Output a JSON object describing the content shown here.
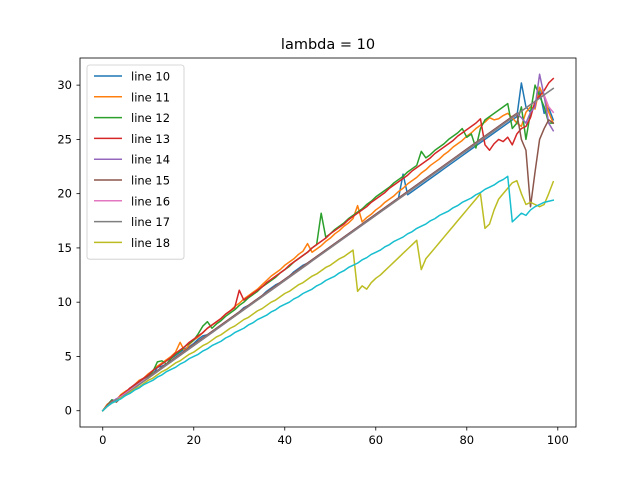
{
  "chart_data": {
    "type": "line",
    "title": "lambda = 10",
    "xlabel": "",
    "ylabel": "",
    "xlim": [
      -5,
      104
    ],
    "ylim": [
      -1.5,
      32.5
    ],
    "x_ticks": [
      0,
      20,
      40,
      60,
      80,
      100
    ],
    "y_ticks": [
      0,
      5,
      10,
      15,
      20,
      25,
      30
    ],
    "grid": false,
    "legend_position": "top-left",
    "x_start": 0,
    "x_end": 99,
    "series": [
      {
        "name": "line 10",
        "color": "#1f77b4",
        "values": [
          0.0,
          0.5,
          1.0,
          0.9,
          1.4,
          1.6,
          2.1,
          2.2,
          2.6,
          2.9,
          3.2,
          3.3,
          4.0,
          4.1,
          4.3,
          4.8,
          5.1,
          5.4,
          5.7,
          5.9,
          6.2,
          6.6,
          6.9,
          7.0,
          7.2,
          7.5,
          7.8,
          8.1,
          8.5,
          8.8,
          9.1,
          9.5,
          9.7,
          10.0,
          10.3,
          10.6,
          11.0,
          11.3,
          11.6,
          11.8,
          12.1,
          12.4,
          12.8,
          13.1,
          13.4,
          13.6,
          13.9,
          14.2,
          14.5,
          14.8,
          15.1,
          15.4,
          15.7,
          16.0,
          16.3,
          16.6,
          16.9,
          17.2,
          17.5,
          17.8,
          18.1,
          18.4,
          18.7,
          19.0,
          19.3,
          19.6,
          21.8,
          19.9,
          20.2,
          20.5,
          20.8,
          21.1,
          21.4,
          21.7,
          22.0,
          22.3,
          22.6,
          22.9,
          23.2,
          23.5,
          23.8,
          24.1,
          24.4,
          24.7,
          25.0,
          25.3,
          25.6,
          25.9,
          26.2,
          26.5,
          26.8,
          27.1,
          30.2,
          28.0,
          27.5,
          28.2,
          29.5,
          27.4,
          27.9,
          26.8
        ]
      },
      {
        "name": "line 11",
        "color": "#ff7f0e",
        "values": [
          0.0,
          0.6,
          0.9,
          1.0,
          1.5,
          1.8,
          2.0,
          2.4,
          2.8,
          3.0,
          3.4,
          3.7,
          4.1,
          4.4,
          4.7,
          5.0,
          5.4,
          6.3,
          5.5,
          6.1,
          6.5,
          6.8,
          7.2,
          7.6,
          7.9,
          8.2,
          8.5,
          8.9,
          9.2,
          9.6,
          9.9,
          10.3,
          10.6,
          10.9,
          11.2,
          11.6,
          12.0,
          12.4,
          12.7,
          13.0,
          13.4,
          13.7,
          14.0,
          14.4,
          14.7,
          15.4,
          14.6,
          14.9,
          15.2,
          15.6,
          15.9,
          16.3,
          16.6,
          17.0,
          17.3,
          17.7,
          18.9,
          17.4,
          17.8,
          18.1,
          18.5,
          18.8,
          19.2,
          19.5,
          19.8,
          20.2,
          20.5,
          20.9,
          21.2,
          21.5,
          21.9,
          22.2,
          22.6,
          22.9,
          23.2,
          23.6,
          23.9,
          24.3,
          24.6,
          24.9,
          25.3,
          25.6,
          26.0,
          26.3,
          26.6,
          27.0,
          26.8,
          26.9,
          27.2,
          27.4,
          27.0,
          26.5,
          26.2,
          27.5,
          28.0,
          27.8,
          29.8,
          28.9,
          27.5,
          26.5
        ]
      },
      {
        "name": "line 12",
        "color": "#2ca02c",
        "values": [
          0.0,
          0.5,
          1.0,
          0.8,
          1.3,
          1.7,
          2.0,
          2.3,
          2.6,
          3.0,
          3.2,
          3.6,
          4.5,
          4.6,
          4.3,
          4.8,
          5.2,
          5.5,
          5.9,
          6.2,
          6.5,
          7.1,
          7.8,
          8.2,
          7.6,
          8.0,
          8.3,
          8.7,
          9.0,
          9.3,
          9.7,
          10.0,
          10.4,
          10.7,
          11.0,
          11.4,
          11.7,
          12.0,
          12.3,
          12.7,
          13.0,
          13.3,
          13.7,
          14.0,
          14.3,
          14.6,
          15.0,
          15.3,
          18.2,
          16.0,
          16.3,
          16.7,
          17.0,
          17.3,
          17.7,
          18.0,
          18.3,
          18.6,
          19.0,
          19.3,
          19.7,
          20.0,
          20.3,
          20.6,
          21.0,
          21.3,
          21.6,
          22.0,
          22.3,
          22.6,
          23.9,
          23.3,
          23.6,
          24.0,
          24.3,
          24.6,
          25.0,
          25.3,
          25.6,
          26.0,
          25.2,
          25.5,
          24.2,
          26.0,
          26.8,
          27.1,
          27.4,
          27.7,
          28.0,
          28.3,
          26.0,
          26.5,
          28.0,
          25.0,
          27.5,
          30.0,
          29.0,
          28.0,
          26.5,
          26.5
        ]
      },
      {
        "name": "line 13",
        "color": "#d62728",
        "values": [
          0.0,
          0.5,
          0.9,
          1.0,
          1.4,
          1.7,
          2.1,
          2.4,
          2.7,
          3.0,
          3.3,
          3.7,
          4.0,
          4.3,
          4.6,
          4.9,
          5.3,
          5.6,
          5.9,
          6.3,
          6.6,
          6.9,
          7.2,
          7.6,
          7.9,
          8.2,
          8.5,
          8.9,
          9.2,
          9.5,
          11.1,
          10.2,
          10.5,
          10.8,
          11.1,
          11.4,
          11.8,
          12.1,
          12.4,
          12.7,
          13.0,
          13.4,
          13.7,
          14.0,
          14.3,
          14.6,
          15.0,
          15.3,
          15.6,
          15.9,
          16.3,
          16.6,
          16.9,
          17.2,
          17.6,
          17.9,
          18.2,
          18.5,
          18.8,
          19.2,
          19.5,
          19.8,
          20.1,
          20.5,
          20.8,
          21.1,
          21.4,
          21.7,
          22.1,
          22.4,
          22.7,
          23.0,
          23.3,
          23.7,
          24.0,
          24.3,
          24.6,
          24.9,
          25.3,
          25.6,
          25.9,
          26.2,
          26.5,
          26.9,
          24.5,
          24.0,
          24.6,
          25.0,
          24.8,
          25.2,
          24.5,
          25.5,
          26.0,
          26.2,
          27.0,
          28.5,
          29.0,
          29.5,
          30.2,
          30.6
        ]
      },
      {
        "name": "line 14",
        "color": "#9467bd",
        "values": [
          0.0,
          0.4,
          0.8,
          1.1,
          1.3,
          1.6,
          1.9,
          2.2,
          2.5,
          2.8,
          3.1,
          3.4,
          3.7,
          4.0,
          4.3,
          4.6,
          4.9,
          5.2,
          5.5,
          5.8,
          6.1,
          6.4,
          6.7,
          7.0,
          7.3,
          7.6,
          7.9,
          8.2,
          8.5,
          8.8,
          9.1,
          9.4,
          9.7,
          10.0,
          10.3,
          10.6,
          10.9,
          11.2,
          11.5,
          11.8,
          12.1,
          12.4,
          12.7,
          13.0,
          13.3,
          13.6,
          13.9,
          14.2,
          14.5,
          14.8,
          15.1,
          15.4,
          15.7,
          16.0,
          16.3,
          16.6,
          16.9,
          17.2,
          17.5,
          17.8,
          18.1,
          18.4,
          18.7,
          19.0,
          19.3,
          19.6,
          19.9,
          20.2,
          20.5,
          20.8,
          21.1,
          21.4,
          21.7,
          22.0,
          22.3,
          22.6,
          22.9,
          23.2,
          23.5,
          23.8,
          24.1,
          24.4,
          24.7,
          25.0,
          25.3,
          25.6,
          25.9,
          26.2,
          26.5,
          26.8,
          27.1,
          27.4,
          27.0,
          26.5,
          27.5,
          28.0,
          31.0,
          29.0,
          26.5,
          25.8
        ]
      },
      {
        "name": "line 15",
        "color": "#8c564b",
        "values": [
          0.0,
          0.5,
          0.9,
          0.8,
          1.2,
          1.6,
          1.9,
          2.2,
          2.5,
          2.8,
          3.1,
          3.4,
          3.7,
          4.0,
          4.3,
          4.6,
          4.9,
          5.2,
          5.5,
          5.8,
          6.1,
          6.4,
          6.7,
          7.0,
          7.3,
          7.6,
          7.9,
          8.2,
          8.5,
          8.8,
          9.1,
          9.4,
          9.7,
          10.0,
          10.3,
          10.6,
          10.9,
          11.2,
          11.5,
          11.8,
          12.1,
          12.4,
          12.7,
          13.0,
          13.3,
          13.6,
          13.9,
          14.2,
          14.5,
          14.8,
          15.1,
          15.4,
          15.7,
          16.0,
          16.3,
          16.6,
          16.9,
          17.2,
          17.5,
          17.8,
          18.1,
          18.4,
          18.7,
          19.0,
          19.3,
          19.6,
          19.9,
          20.2,
          20.5,
          20.8,
          21.1,
          21.4,
          21.7,
          22.0,
          22.3,
          22.6,
          22.9,
          23.2,
          23.5,
          23.8,
          24.1,
          24.4,
          24.7,
          25.0,
          25.3,
          25.6,
          25.9,
          26.2,
          26.5,
          26.8,
          27.1,
          27.4,
          25.0,
          24.0,
          18.8,
          22.0,
          25.0,
          26.0,
          26.8,
          26.5
        ]
      },
      {
        "name": "line 16",
        "color": "#e377c2",
        "values": [
          0.0,
          0.4,
          0.8,
          1.0,
          1.3,
          1.6,
          1.9,
          2.2,
          2.5,
          2.8,
          3.0,
          3.3,
          3.6,
          3.9,
          4.2,
          4.5,
          4.8,
          5.1,
          5.4,
          5.7,
          6.0,
          6.3,
          6.6,
          6.9,
          7.2,
          7.5,
          7.8,
          8.1,
          8.4,
          8.7,
          9.0,
          9.3,
          9.6,
          9.9,
          10.2,
          10.5,
          10.8,
          11.1,
          11.4,
          11.7,
          12.0,
          12.3,
          12.6,
          12.9,
          13.2,
          13.5,
          13.8,
          14.1,
          14.4,
          14.7,
          15.0,
          15.3,
          15.6,
          15.9,
          16.2,
          16.5,
          16.8,
          17.1,
          17.4,
          17.7,
          18.0,
          18.3,
          18.6,
          18.9,
          19.2,
          19.5,
          19.8,
          20.1,
          20.4,
          20.7,
          21.0,
          21.3,
          21.6,
          21.9,
          22.2,
          22.5,
          22.8,
          23.1,
          23.4,
          23.7,
          24.0,
          24.3,
          24.6,
          24.9,
          25.2,
          25.5,
          25.8,
          26.1,
          26.4,
          26.7,
          27.0,
          27.3,
          27.6,
          27.9,
          28.2,
          28.5,
          28.8,
          29.1,
          28.0,
          27.5
        ]
      },
      {
        "name": "line 17",
        "color": "#7f7f7f",
        "values": [
          0.0,
          0.4,
          0.8,
          1.0,
          1.2,
          1.5,
          1.8,
          2.1,
          2.4,
          2.7,
          3.0,
          3.3,
          3.6,
          3.9,
          4.2,
          4.5,
          4.8,
          5.1,
          5.4,
          5.7,
          6.0,
          6.3,
          6.6,
          6.9,
          7.2,
          7.5,
          7.8,
          8.1,
          8.4,
          8.7,
          9.0,
          9.3,
          9.6,
          9.9,
          10.2,
          10.5,
          10.8,
          11.1,
          11.4,
          11.7,
          12.0,
          12.3,
          12.6,
          12.9,
          13.2,
          13.5,
          13.8,
          14.1,
          14.4,
          14.7,
          15.0,
          15.3,
          15.6,
          15.9,
          16.2,
          16.5,
          16.8,
          17.1,
          17.4,
          17.7,
          18.0,
          18.3,
          18.6,
          18.9,
          19.2,
          19.5,
          19.8,
          20.1,
          20.4,
          20.7,
          21.0,
          21.3,
          21.6,
          21.9,
          22.2,
          22.5,
          22.8,
          23.1,
          23.4,
          23.7,
          24.0,
          24.3,
          24.6,
          24.9,
          25.2,
          25.5,
          25.8,
          26.1,
          26.4,
          26.7,
          27.0,
          27.3,
          27.6,
          27.9,
          28.2,
          28.5,
          28.8,
          29.1,
          29.4,
          29.7
        ]
      },
      {
        "name": "line 18",
        "color": "#bcbd22",
        "values": [
          0.0,
          0.4,
          0.7,
          0.9,
          1.2,
          1.4,
          1.7,
          2.0,
          2.2,
          2.5,
          2.8,
          3.0,
          3.3,
          3.6,
          3.8,
          4.1,
          4.4,
          4.6,
          4.9,
          5.2,
          5.4,
          5.7,
          6.0,
          6.2,
          6.5,
          6.8,
          7.0,
          7.3,
          7.6,
          7.8,
          8.1,
          8.4,
          8.6,
          8.9,
          9.2,
          9.4,
          9.7,
          10.0,
          10.2,
          10.5,
          10.8,
          11.0,
          11.3,
          11.6,
          11.8,
          12.1,
          12.4,
          12.6,
          12.9,
          13.2,
          13.4,
          13.7,
          14.0,
          14.2,
          14.5,
          14.8,
          11.0,
          11.5,
          11.2,
          11.8,
          12.2,
          12.5,
          12.9,
          13.3,
          13.7,
          14.1,
          14.5,
          14.9,
          15.3,
          15.7,
          13.0,
          14.0,
          14.5,
          15.0,
          15.5,
          16.0,
          16.5,
          17.0,
          17.5,
          18.0,
          18.5,
          19.0,
          19.5,
          20.0,
          16.8,
          17.2,
          18.5,
          19.5,
          20.0,
          20.5,
          21.0,
          21.2,
          20.0,
          19.0,
          19.2,
          19.0,
          18.8,
          19.0,
          20.0,
          21.1
        ]
      },
      {
        "name": "",
        "color": "#17becf",
        "values": [
          0.0,
          0.4,
          0.7,
          0.9,
          1.1,
          1.4,
          1.6,
          1.9,
          2.1,
          2.4,
          2.6,
          2.8,
          3.1,
          3.3,
          3.6,
          3.8,
          4.0,
          4.3,
          4.5,
          4.8,
          5.0,
          5.2,
          5.5,
          5.7,
          6.0,
          6.2,
          6.4,
          6.7,
          6.9,
          7.2,
          7.4,
          7.6,
          7.9,
          8.1,
          8.4,
          8.6,
          8.8,
          9.1,
          9.3,
          9.6,
          9.8,
          10.0,
          10.3,
          10.5,
          10.8,
          11.0,
          11.2,
          11.5,
          11.7,
          12.0,
          12.2,
          12.4,
          12.7,
          12.9,
          13.2,
          13.4,
          13.6,
          13.9,
          14.1,
          14.4,
          14.6,
          14.8,
          15.1,
          15.3,
          15.6,
          15.8,
          16.0,
          16.3,
          16.5,
          16.8,
          17.0,
          17.2,
          17.5,
          17.7,
          18.0,
          18.2,
          18.4,
          18.7,
          18.9,
          19.2,
          19.4,
          19.6,
          19.9,
          20.1,
          20.4,
          20.6,
          20.8,
          21.1,
          21.3,
          21.6,
          17.4,
          17.8,
          18.2,
          18.0,
          18.5,
          18.8,
          19.0,
          19.2,
          19.3,
          19.4
        ]
      }
    ]
  }
}
